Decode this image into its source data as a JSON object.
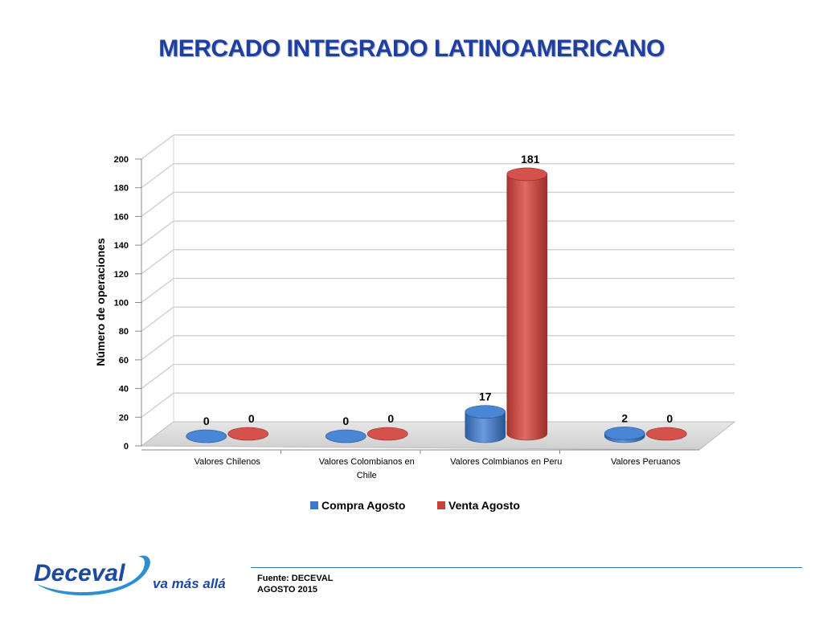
{
  "title": "MERCADO INTEGRADO LATINOAMERICANO",
  "chart_data": {
    "type": "bar",
    "ylabel": "Número de operaciones",
    "ylim": [
      0,
      200
    ],
    "yticks": [
      0,
      20,
      40,
      60,
      80,
      100,
      120,
      140,
      160,
      180,
      200
    ],
    "categories": [
      "Valores Chilenos",
      "Valores Colombianos en Chile",
      "Valores Colmbianos en Peru",
      "Valores Peruanos"
    ],
    "series": [
      {
        "name": "Compra Agosto",
        "color": "#3d78c9",
        "values": [
          0,
          0,
          17,
          2
        ]
      },
      {
        "name": "Venta Agosto",
        "color": "#c9413b",
        "values": [
          0,
          0,
          181,
          0
        ]
      }
    ],
    "legend": "bottom",
    "grid": true
  },
  "footer": {
    "source": "Fuente: DECEVAL",
    "date": "AGOSTO 2015"
  },
  "logo": {
    "brand": "Deceval",
    "tagline": "va más allá"
  }
}
